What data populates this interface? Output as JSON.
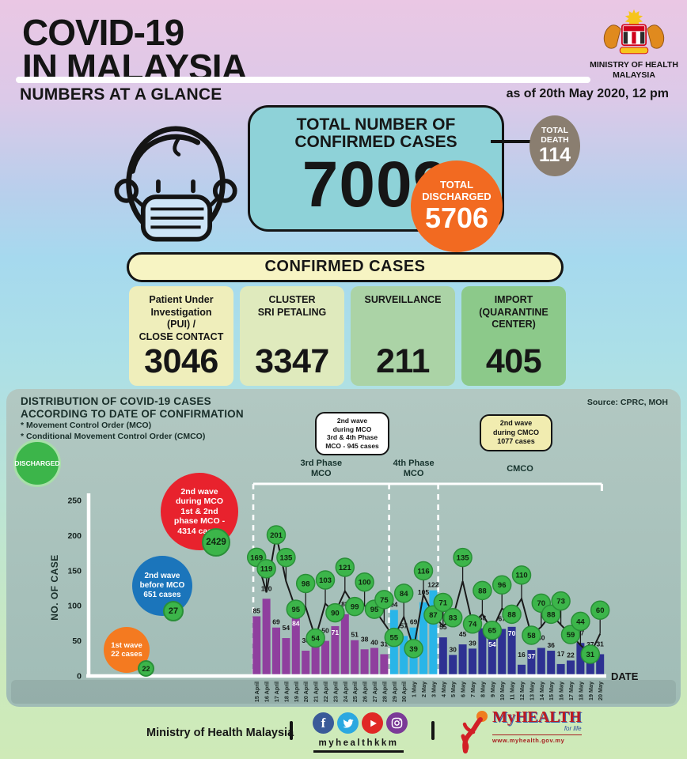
{
  "header": {
    "title_line1": "COVID-19",
    "title_line2": "IN MALAYSIA",
    "ministry_line1": "MINISTRY OF HEALTH",
    "ministry_line2": "MALAYSIA",
    "subtitle": "NUMBERS AT A GLANCE",
    "as_of": "as of 20th May 2020, 12 pm"
  },
  "hero": {
    "confirmed_label": "TOTAL NUMBER OF\nCONFIRMED CASES",
    "confirmed_value": "7009",
    "discharged_label_1": "TOTAL",
    "discharged_label_2": "DISCHARGED",
    "discharged_value": "5706",
    "death_label_1": "TOTAL",
    "death_label_2": "DEATH",
    "death_value": "114"
  },
  "confirmed": {
    "banner": "CONFIRMED CASES",
    "boxes": [
      {
        "label": "Patient Under\nInvestigation\n(PUI) /\nCLOSE CONTACT",
        "value": "3046",
        "color": "#efeebb"
      },
      {
        "label": "CLUSTER\nSRI PETALING",
        "value": "3347",
        "color": "#dfeabd"
      },
      {
        "label": "SURVEILLANCE",
        "value": "211",
        "color": "#abd3a6"
      },
      {
        "label": "IMPORT\n(QUARANTINE\nCENTER)",
        "value": "405",
        "color": "#8cc98a"
      }
    ]
  },
  "chart_data": {
    "type": "bar",
    "title_line1": "DISTRIBUTION OF COVID-19 CASES",
    "title_line2": "ACCORDING TO DATE OF CONFIRMATION",
    "notes": "* Movement Control Order (MCO)\n* Conditional Movement Control Order (CMCO)",
    "source": "Source: CPRC, MOH",
    "xlabel": "DATE",
    "ylabel": "NO. OF CASE",
    "ylim": [
      0,
      250
    ],
    "yticks": [
      0,
      50,
      100,
      150,
      200,
      250
    ],
    "legend_discharged": "DISCHARGED",
    "categories": [
      "15 April",
      "16 April",
      "17 April",
      "18 April",
      "19 April",
      "20 April",
      "21 April",
      "22 April",
      "23 April",
      "24 April",
      "25 April",
      "26 April",
      "27 April",
      "28 April",
      "29 April",
      "30 April",
      "1 May",
      "2 May",
      "3 May",
      "4 May",
      "5 May",
      "6 May",
      "7 May",
      "8 May",
      "9 May",
      "10 May",
      "11 May",
      "12 May",
      "13 May",
      "14 May",
      "15 May",
      "16 May",
      "17 May",
      "18 May",
      "19 May",
      "20 May"
    ],
    "series": [
      {
        "name": "Confirmed cases",
        "type": "bar",
        "values": [
          85,
          110,
          69,
          54,
          84,
          36,
          57,
          50,
          71,
          88,
          51,
          38,
          40,
          31,
          94,
          57,
          69,
          105,
          122,
          55,
          30,
          45,
          39,
          68,
          54,
          67,
          70,
          16,
          37,
          40,
          36,
          17,
          22,
          47,
          37,
          31
        ]
      },
      {
        "name": "Discharged",
        "type": "line",
        "values": [
          169,
          119,
          201,
          135,
          95,
          98,
          54,
          103,
          90,
          121,
          99,
          100,
          95,
          75,
          55,
          84,
          39,
          116,
          87,
          71,
          83,
          135,
          74,
          88,
          65,
          96,
          88,
          110,
          58,
          70,
          88,
          73,
          59,
          44,
          31,
          60
        ]
      }
    ],
    "phases": [
      {
        "label": "3rd Phase\nMCO",
        "from": 0,
        "to": 13,
        "color": "#8f3f9e"
      },
      {
        "label": "4th Phase\nMCO",
        "from": 14,
        "to": 18,
        "color": "#29b5e8"
      },
      {
        "label": "CMCO",
        "from": 19,
        "to": 35,
        "color": "#2e3192"
      }
    ],
    "annotations": {
      "wave1": {
        "text": "1st wave\n22 cases",
        "badge": "22",
        "color": "#f47a20"
      },
      "wave2_before": {
        "text": "2nd wave\nbefore MCO\n651 cases",
        "badge": "27",
        "color": "#1b75bb"
      },
      "wave2_mco12": {
        "text": "2nd wave\nduring MCO\n1st & 2nd\nphase MCO -\n4314 cases",
        "badge": "2429",
        "color": "#e8222d"
      },
      "wave2_mco34": {
        "text": "2nd wave\nduring MCO\n3rd & 4th Phase\nMCO - 945 cases"
      },
      "wave2_cmco": {
        "text": "2nd wave\nduring CMCO\n1077 cases"
      }
    }
  },
  "footer": {
    "ministry": "Ministry of Health Malaysia",
    "handle": "myhealthkkm",
    "social": [
      "facebook",
      "twitter",
      "youtube",
      "instagram"
    ],
    "myhealth_title": "MyHEALTH",
    "myhealth_sub": "for life",
    "myhealth_url": "www.myhealth.gov.my"
  },
  "colors": {
    "bar_mco": "#8f3f9e",
    "bar_mco4": "#29b5e8",
    "bar_cmco": "#2e3192",
    "discharged_green": "#3cb54a",
    "line": "#1a1a1a",
    "panel": "#a9c3be",
    "accent_teal": "#8ed2d8",
    "accent_orange": "#f26a21",
    "accent_brown": "#8a7e70"
  }
}
